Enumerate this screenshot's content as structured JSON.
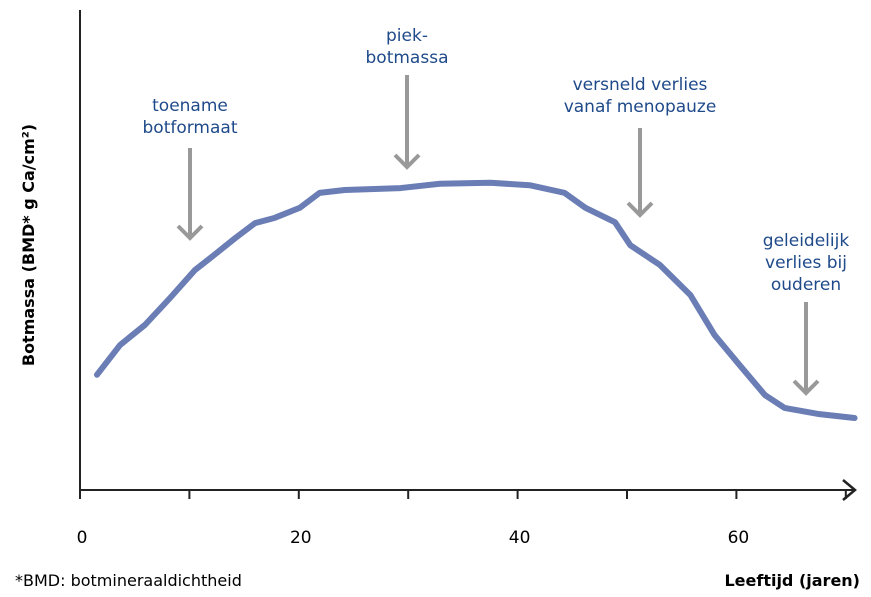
{
  "chart_data": {
    "type": "line",
    "y_label": "Botmassa (BMD* g Ca/cm²)",
    "x_label": "Leeftijd (jaren)",
    "footnote": "*BMD: botmineraaldichtheid",
    "xlim": [
      0,
      71
    ],
    "ylim": [
      0,
      100
    ],
    "xticks": [
      0,
      20,
      40,
      60
    ],
    "xminor_ticks": [
      10,
      30,
      50,
      70
    ],
    "series": [
      {
        "color": "#6a7db5",
        "x": [
          1.55,
          3.66,
          5.94,
          8.23,
          10.5,
          11.9,
          14.2,
          16.0,
          17.8,
          20.1,
          21.9,
          24.2,
          29.3,
          32.9,
          37.5,
          41.1,
          44.3,
          46.2,
          48.9,
          50.3,
          53.0,
          55.8,
          58.0,
          60.3,
          62.6,
          64.4,
          67.6,
          70.8
        ],
        "values": [
          24.0,
          30.2,
          34.4,
          40.0,
          45.8,
          48.3,
          52.5,
          55.6,
          56.7,
          58.8,
          61.9,
          62.5,
          62.9,
          63.8,
          64.0,
          63.5,
          61.9,
          58.8,
          55.8,
          51.0,
          46.9,
          40.6,
          32.3,
          26.0,
          19.8,
          17.1,
          15.8,
          15.0
        ]
      }
    ],
    "annotations": [
      {
        "lines": [
          "toename",
          "botformaat"
        ]
      },
      {
        "lines": [
          "piek-",
          "botmassa"
        ]
      },
      {
        "lines": [
          "versneld verlies",
          "vanaf menopauze"
        ]
      },
      {
        "lines": [
          "geleidelijk",
          "verlies bij",
          "ouderen"
        ]
      }
    ]
  }
}
